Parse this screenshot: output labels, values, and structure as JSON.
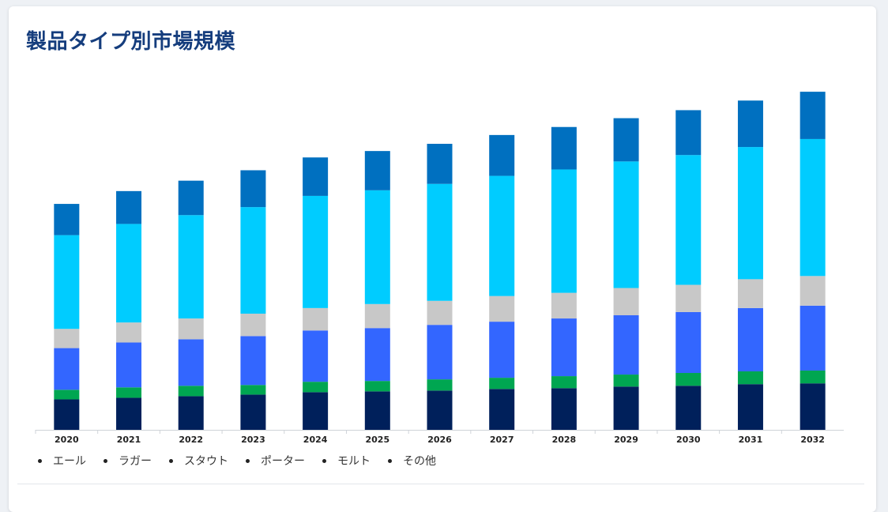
{
  "title": "製品タイプ別市場規模",
  "chart_data": {
    "type": "bar",
    "stacked": true,
    "categories": [
      "2020",
      "2021",
      "2022",
      "2023",
      "2024",
      "2025",
      "2026",
      "2027",
      "2028",
      "2029",
      "2030",
      "2031",
      "2032"
    ],
    "series": [
      {
        "name": "エール",
        "color": "#00205b",
        "values": [
          38,
          40,
          42,
          44,
          47,
          48,
          49,
          51,
          52,
          54,
          55,
          57,
          58
        ]
      },
      {
        "name": "ラガー",
        "color": "#00a651",
        "values": [
          12,
          13,
          13,
          12,
          13,
          13,
          14,
          14,
          15,
          15,
          16,
          16,
          16
        ]
      },
      {
        "name": "スタウト",
        "color": "#3366ff",
        "values": [
          52,
          56,
          58,
          61,
          64,
          66,
          68,
          70,
          72,
          74,
          76,
          79,
          81
        ]
      },
      {
        "name": "ポーター",
        "color": "#c8c8c8",
        "values": [
          24,
          25,
          26,
          28,
          28,
          30,
          30,
          32,
          32,
          34,
          34,
          36,
          37
        ]
      },
      {
        "name": "モルト",
        "color": "#00ccff",
        "values": [
          117,
          123,
          129,
          133,
          140,
          142,
          146,
          150,
          154,
          158,
          162,
          165,
          171
        ]
      },
      {
        "name": "その他",
        "color": "#0070c0",
        "values": [
          39,
          41,
          43,
          46,
          48,
          49,
          50,
          51,
          53,
          54,
          56,
          58,
          59
        ]
      }
    ],
    "ylim": [
      0,
      430
    ],
    "grid": false,
    "legend_position": "bottom-left"
  }
}
